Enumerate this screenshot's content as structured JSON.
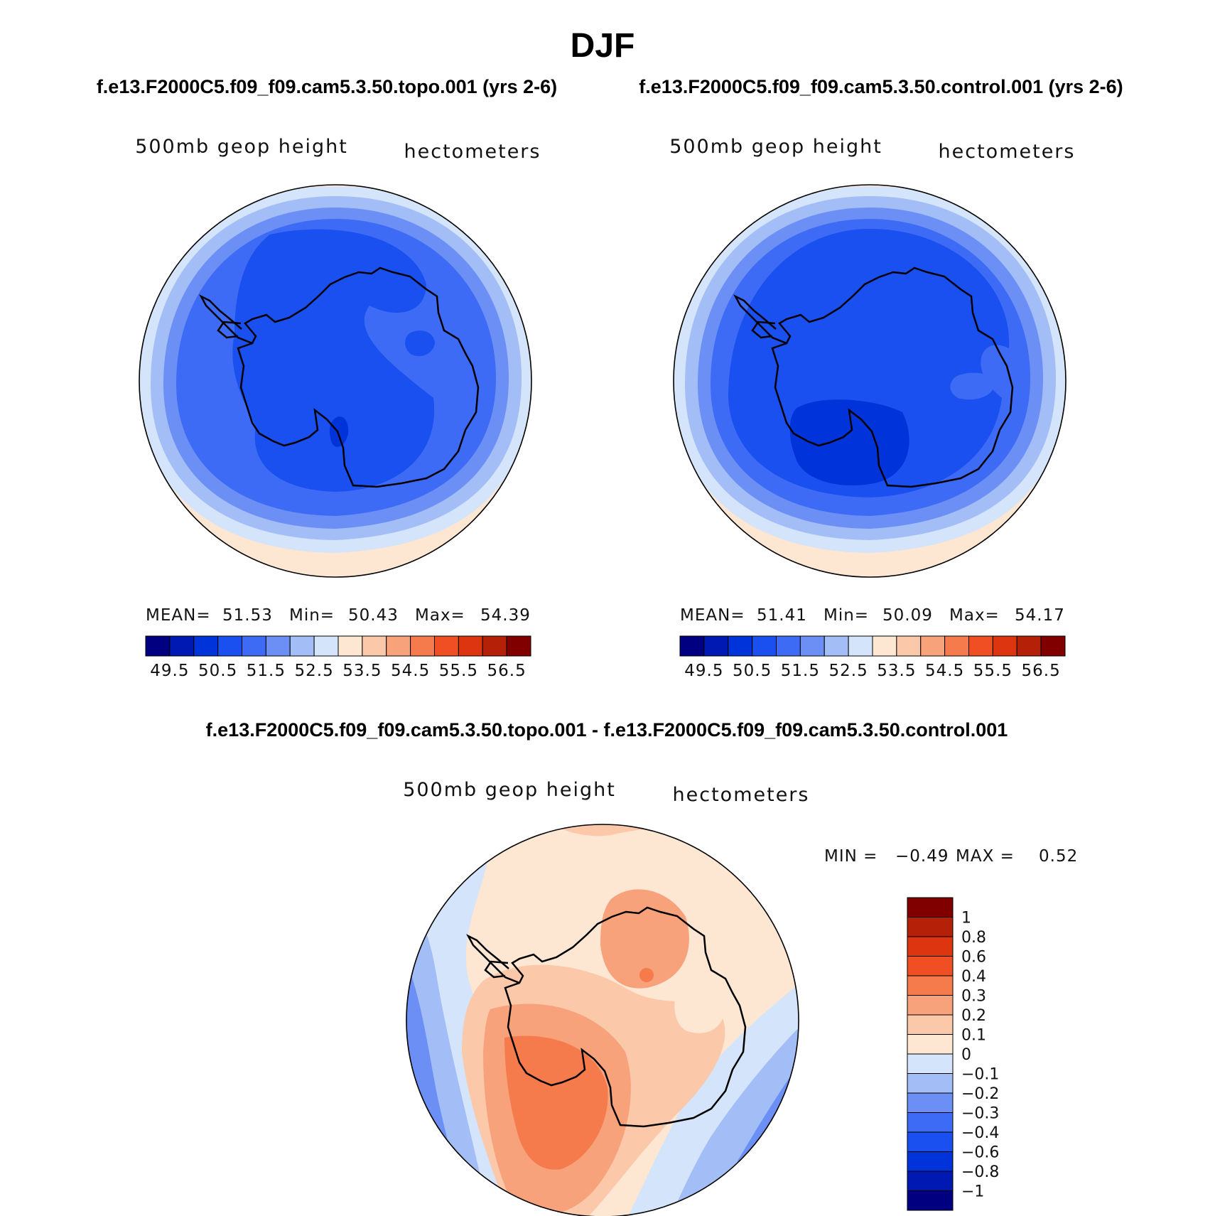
{
  "figure_title": "DJF",
  "panels": [
    {
      "case_title": "f.e13.F2000C5.f09_f09.cam5.3.50.topo.001 (yrs 2-6)",
      "variable": "500mb geop height",
      "units": "hectometers",
      "stats": {
        "mean_label": "MEAN=",
        "mean": "51.53",
        "min_label": "Min=",
        "min": "50.43",
        "max_label": "Max=",
        "max": "54.39"
      }
    },
    {
      "case_title": "f.e13.F2000C5.f09_f09.cam5.3.50.control.001 (yrs 2-6)",
      "variable": "500mb geop height",
      "units": "hectometers",
      "stats": {
        "mean_label": "MEAN=",
        "mean": "51.41",
        "min_label": "Min=",
        "min": "50.09",
        "max_label": "Max=",
        "max": "54.17"
      }
    }
  ],
  "main_colorbar": {
    "tick_labels": [
      "49.5",
      "50.5",
      "51.5",
      "52.5",
      "53.5",
      "54.5",
      "55.5",
      "56.5"
    ],
    "colors": [
      "#000080",
      "#0019b3",
      "#0033d9",
      "#1a4ff0",
      "#3d6bf5",
      "#6b8ff5",
      "#a3bdf7",
      "#d4e4fa",
      "#fde6d2",
      "#fbc8aa",
      "#f8a27c",
      "#f57a4c",
      "#f04e23",
      "#dd3510",
      "#b42008",
      "#800000"
    ]
  },
  "diff_panel": {
    "case_title": "f.e13.F2000C5.f09_f09.cam5.3.50.topo.001 - f.e13.F2000C5.f09_f09.cam5.3.50.control.001",
    "variable": "500mb geop height",
    "units": "hectometers",
    "stats": {
      "min_label": "MIN =",
      "min": "−0.49",
      "max_label": "MAX =",
      "max": "0.52"
    }
  },
  "diff_colorbar": {
    "labels": [
      "1",
      "0.8",
      "0.6",
      "0.4",
      "0.3",
      "0.2",
      "0.1",
      "0",
      "−0.1",
      "−0.2",
      "−0.3",
      "−0.4",
      "−0.6",
      "−0.8",
      "−1"
    ],
    "colors": [
      "#800000",
      "#b42008",
      "#dd3510",
      "#f04e23",
      "#f57a4c",
      "#f8a27c",
      "#fbc8aa",
      "#fde6d2",
      "#d4e4fa",
      "#a3bdf7",
      "#6b8ff5",
      "#3d6bf5",
      "#1a4ff0",
      "#0033d9",
      "#0019b3",
      "#000080"
    ]
  }
}
